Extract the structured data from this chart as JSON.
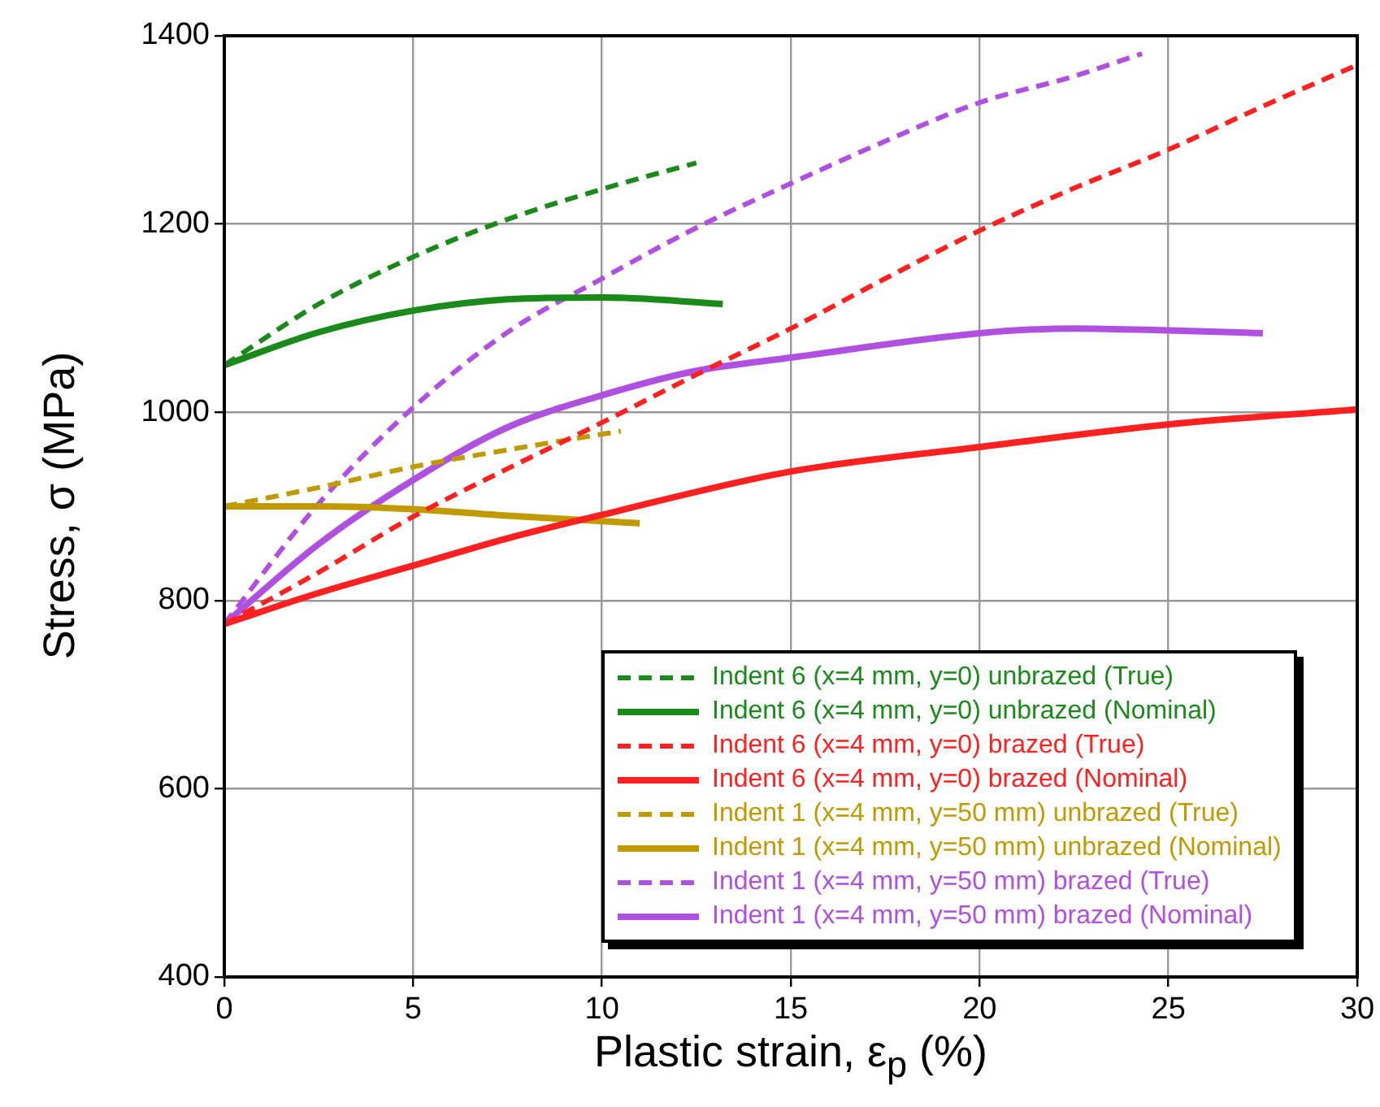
{
  "chart_data": {
    "type": "line",
    "xlabel": "Plastic strain, ε$_{p}$ (%)",
    "ylabel": "Stress, σ (MPa)",
    "xlim": [
      0,
      30
    ],
    "xticks": [
      0,
      5,
      10,
      15,
      20,
      25,
      30
    ],
    "ylim": [
      400,
      1400
    ],
    "yticks": [
      400,
      600,
      800,
      1000,
      1200,
      1400
    ],
    "grid": true,
    "legend": "bottom right",
    "marker": "none",
    "series": [
      {
        "name": "Indent 6 (x=4 mm, y=0) unbrazed (True)",
        "color": "#1a8a1a",
        "line_style": "dashed",
        "x": [
          0,
          2.5,
          5,
          7.5,
          10,
          12.5
        ],
        "values": [
          1050,
          1115,
          1165,
          1205,
          1237,
          1265
        ]
      },
      {
        "name": "Indent 6 (x=4 mm, y=0) unbrazed (Nominal)",
        "color": "#1a8a1a",
        "line_style": "solid",
        "x": [
          0,
          2.5,
          5,
          7.5,
          10,
          13.2
        ],
        "values": [
          1050,
          1085,
          1108,
          1120,
          1122,
          1115
        ]
      },
      {
        "name": "Indent 6 (x=4 mm, y=0) brazed (True)",
        "color": "#ff2020",
        "line_style": "dashed",
        "x": [
          0,
          2.5,
          5,
          7.5,
          10,
          12.5,
          15,
          17.5,
          20,
          22.5,
          25,
          27.5,
          30
        ],
        "values": [
          775,
          830,
          889,
          940,
          989,
          1040,
          1089,
          1142,
          1193,
          1238,
          1279,
          1325,
          1369
        ]
      },
      {
        "name": "Indent 6 (x=4 mm, y=0) brazed (Nominal)",
        "color": "#ff2020",
        "line_style": "solid",
        "x": [
          0,
          2.5,
          5,
          7.5,
          10,
          15,
          20,
          25,
          30
        ],
        "values": [
          775,
          808,
          837,
          866,
          891,
          937,
          963,
          987,
          1003
        ]
      },
      {
        "name": "Indent 1 (x=4 mm, y=50 mm) unbrazed (True)",
        "color": "#c09a00",
        "line_style": "dashed",
        "x": [
          0,
          2.5,
          5,
          7.5,
          10.5
        ],
        "values": [
          900,
          920,
          942,
          960,
          980
        ]
      },
      {
        "name": "Indent 1 (x=4 mm, y=50 mm) unbrazed (Nominal)",
        "color": "#c09a00",
        "line_style": "solid",
        "x": [
          0,
          2.5,
          5,
          7.5,
          11
        ],
        "values": [
          900,
          900,
          897,
          890,
          882
        ]
      },
      {
        "name": "Indent 1 (x=4 mm, y=50 mm) brazed (True)",
        "color": "#b050e0",
        "line_style": "dashed",
        "x": [
          0,
          2.5,
          5,
          7.5,
          10,
          12.5,
          15,
          17.5,
          20,
          22.5,
          24.3
        ],
        "values": [
          775,
          903,
          1005,
          1085,
          1142,
          1196,
          1243,
          1288,
          1329,
          1357,
          1381
        ]
      },
      {
        "name": "Indent 1 (x=4 mm, y=50 mm) brazed (Nominal)",
        "color": "#b050e0",
        "line_style": "solid",
        "x": [
          0,
          2.5,
          5,
          7.5,
          10,
          12.5,
          15,
          20,
          22.5,
          25,
          27.5
        ],
        "values": [
          775,
          860,
          928,
          984,
          1018,
          1044,
          1058,
          1084,
          1089,
          1087,
          1084
        ]
      }
    ]
  }
}
